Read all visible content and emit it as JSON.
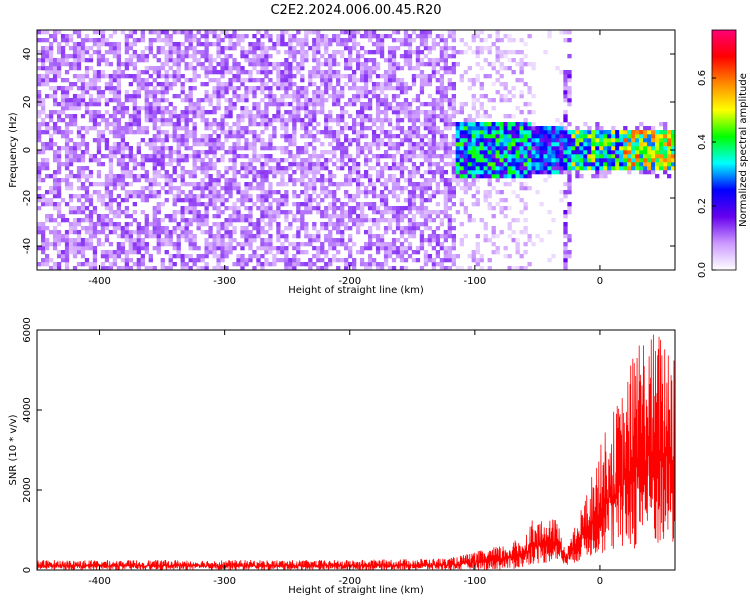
{
  "title": "C2E2.2024.006.00.45.R20",
  "chart_data": [
    {
      "type": "heatmap",
      "panel": "spectrogram",
      "xlabel": "Height of straight line (km)",
      "ylabel": "Frequency (Hz)",
      "xlim": [
        -450,
        60
      ],
      "ylim": [
        -50,
        50
      ],
      "xticks": [
        -400,
        -300,
        -200,
        -100,
        0
      ],
      "yticks": [
        -40,
        -20,
        0,
        20,
        40
      ],
      "colorbar": {
        "label": "Normalized spectral amplitude",
        "range": [
          0.0,
          0.75
        ],
        "ticks": [
          "0.0",
          "0.2",
          "0.4",
          "0.6"
        ],
        "colormap": [
          "#ffffff",
          "#cc99ff",
          "#6600ee",
          "#0000ff",
          "#00ffff",
          "#00ff00",
          "#ffff00",
          "#ff8800",
          "#ff0000",
          "#ff0077"
        ]
      },
      "regions": [
        {
          "x": [
            -450,
            -115
          ],
          "description_level": "broadband noise, all frequencies",
          "amplitude": 0.1
        },
        {
          "x": [
            -115,
            -55
          ],
          "freq_band": [
            -12,
            12
          ],
          "amplitude": 0.35
        },
        {
          "x": [
            -30,
            -22
          ],
          "freq_band": [
            -50,
            50
          ],
          "amplitude": 0.12
        },
        {
          "x": [
            -22,
            60
          ],
          "freq_band": [
            -8,
            8
          ],
          "amplitude": 0.45
        }
      ]
    },
    {
      "type": "line",
      "panel": "snr",
      "xlabel": "Height of straight line (km)",
      "ylabel": "SNR (10 * v/v)",
      "xlim": [
        -450,
        60
      ],
      "ylim": [
        0,
        6000
      ],
      "xticks": [
        -400,
        -300,
        -200,
        -100,
        0
      ],
      "yticks": [
        0,
        2000,
        4000,
        6000
      ],
      "series_color": "#ff0000",
      "envelope": [
        {
          "x": -450,
          "low": 0,
          "high": 250
        },
        {
          "x": -200,
          "low": 0,
          "high": 250
        },
        {
          "x": -120,
          "low": 0,
          "high": 300
        },
        {
          "x": -100,
          "low": 0,
          "high": 450
        },
        {
          "x": -75,
          "low": 0,
          "high": 650
        },
        {
          "x": -60,
          "low": 50,
          "high": 850
        },
        {
          "x": -55,
          "low": 150,
          "high": 1300
        },
        {
          "x": -45,
          "low": 150,
          "high": 1200
        },
        {
          "x": -35,
          "low": 250,
          "high": 1300
        },
        {
          "x": -28,
          "low": 100,
          "high": 600
        },
        {
          "x": -22,
          "low": 150,
          "high": 900
        },
        {
          "x": -10,
          "low": 300,
          "high": 2000
        },
        {
          "x": 5,
          "low": 400,
          "high": 3600
        },
        {
          "x": 20,
          "low": 400,
          "high": 4600
        },
        {
          "x": 30,
          "low": 500,
          "high": 5900
        },
        {
          "x": 45,
          "low": 500,
          "high": 6000
        },
        {
          "x": 60,
          "low": 400,
          "high": 5800
        }
      ]
    }
  ]
}
